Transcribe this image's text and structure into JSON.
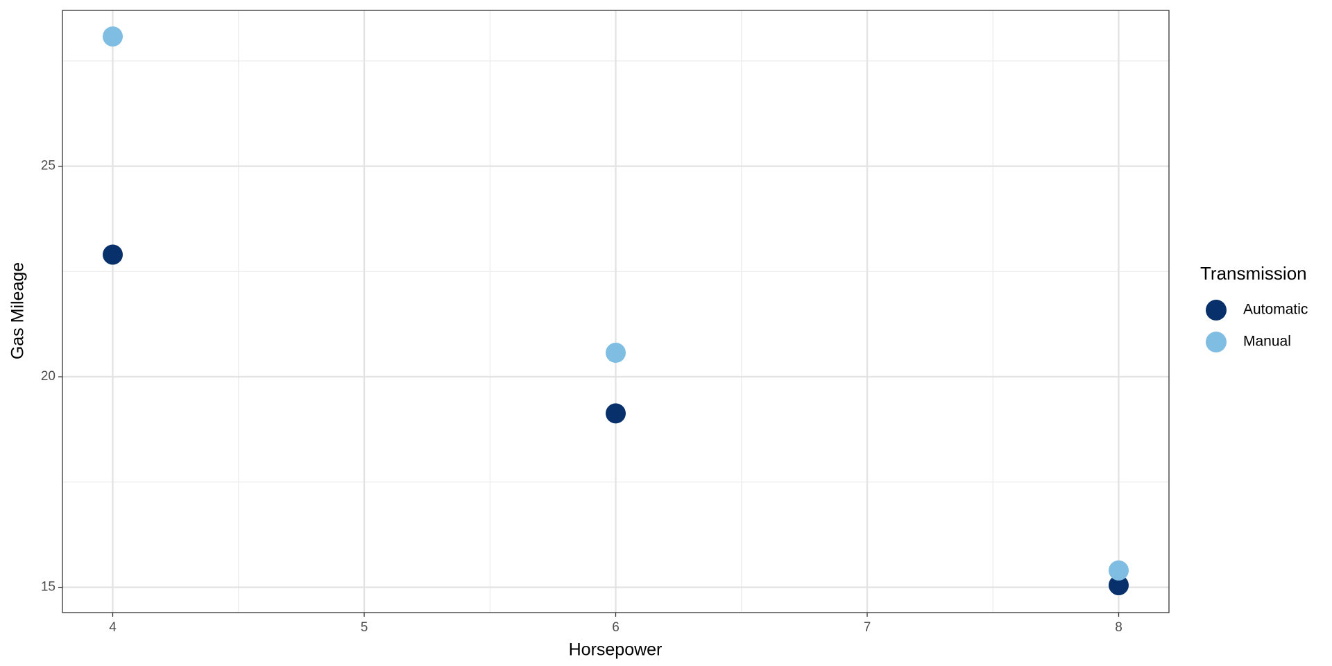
{
  "chart_data": {
    "type": "scatter",
    "x_label": "Horsepower",
    "y_label": "Gas Mileage",
    "legend_title": "Transmission",
    "legend_position": "right",
    "series": [
      {
        "name": "Automatic",
        "color": "#08306b",
        "x": [
          4,
          6,
          8
        ],
        "values": [
          22.9,
          19.13,
          15.05
        ]
      },
      {
        "name": "Manual",
        "color": "#7fbde3",
        "x": [
          4,
          6,
          8
        ],
        "values": [
          28.08,
          20.57,
          15.4
        ]
      }
    ],
    "xlim": [
      3.8,
      8.2
    ],
    "xticks": [
      4,
      5,
      6,
      7,
      8
    ],
    "ylim": [
      14.4,
      28.7
    ],
    "yticks": [
      15,
      20,
      25
    ],
    "grid": true
  }
}
